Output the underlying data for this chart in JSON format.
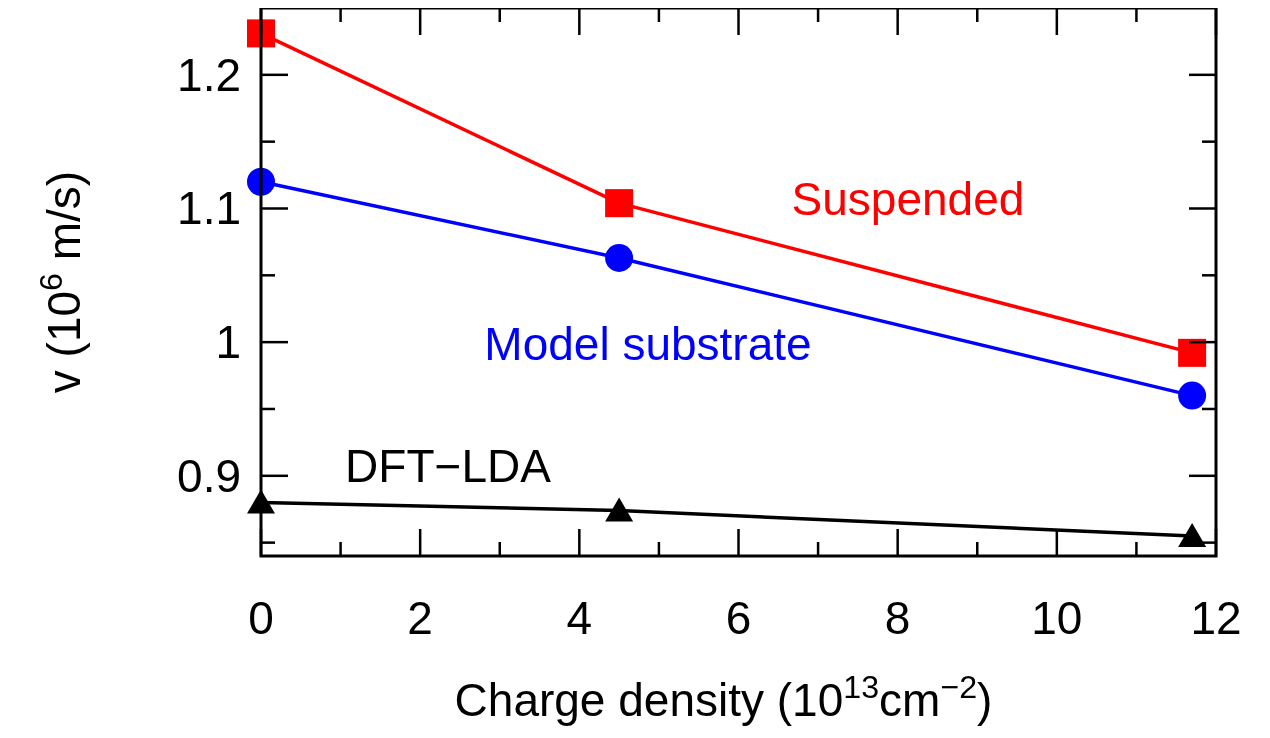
{
  "chart_data": {
    "type": "line",
    "xlabel": "Charge density (10$^{13}$cm$^{−2}$)",
    "ylabel": "v (10$^{6}$ m/s)",
    "xlim": [
      0,
      12
    ],
    "ylim": [
      0.84,
      1.25
    ],
    "xticks": [
      0,
      {
        "value": 1,
        "label": null
      },
      2,
      {
        "value": 3,
        "label": null
      },
      4,
      {
        "value": 5,
        "label": null
      },
      6,
      {
        "value": 7,
        "label": null
      },
      8,
      {
        "value": 9,
        "label": null
      },
      10,
      {
        "value": 11,
        "label": null
      },
      12
    ],
    "yticks": [
      {
        "value": 0.85,
        "label": null
      },
      0.9,
      {
        "value": 0.95,
        "label": null
      },
      1,
      {
        "value": 1.05,
        "label": null
      },
      1.1,
      {
        "value": 1.15,
        "label": null
      },
      1.2
    ],
    "grid": false,
    "line_style": "solid",
    "series": [
      {
        "name": "Suspended",
        "color": "#ff0000",
        "marker": "square",
        "x": [
          0,
          4.5,
          11.7
        ],
        "values": [
          1.231,
          1.104,
          0.992
        ]
      },
      {
        "name": "Model substrate",
        "color": "#0000ff",
        "marker": "circle",
        "x": [
          0,
          4.5,
          11.7
        ],
        "values": [
          1.12,
          1.063,
          0.96
        ]
      },
      {
        "name": "DFT−LDA",
        "color": "#000000",
        "marker": "triangle",
        "x": [
          0,
          4.5,
          11.7
        ],
        "values": [
          0.88,
          0.874,
          0.855
        ]
      }
    ]
  }
}
